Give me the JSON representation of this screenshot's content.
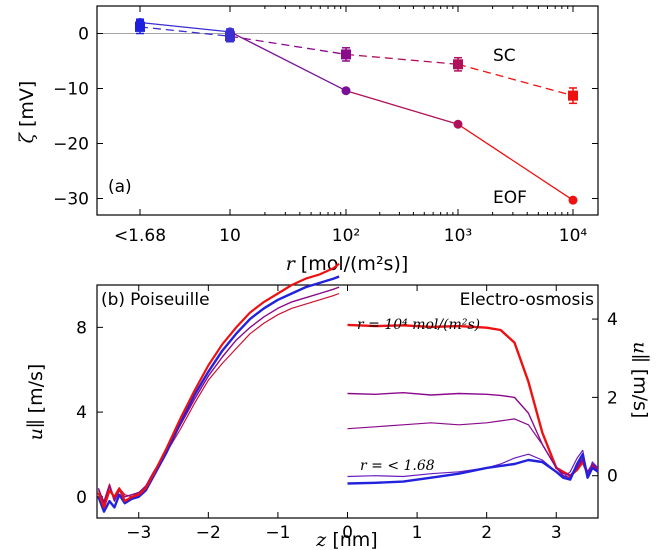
{
  "chart_data": [
    {
      "type": "line",
      "panel_label": "(a)",
      "xlabel_symbol": "r",
      "xlabel_units": "[mol/(m²s)]",
      "ylabel_symbol": "ζ",
      "ylabel_units": "[mV]",
      "x_tick_labels": [
        "<1.68",
        "10",
        "10²",
        "10³",
        "10⁴"
      ],
      "y_ticks": [
        0,
        -10,
        -20,
        -30
      ],
      "ylim": [
        -33,
        5
      ],
      "x_scale": "log",
      "x": [
        "<1.68",
        "10",
        "100",
        "1000",
        "10000"
      ],
      "series": [
        {
          "name": "SC",
          "style": "dashed",
          "marker": "square",
          "values": [
            1.2,
            -0.5,
            -3.8,
            -5.6,
            -11.3
          ],
          "error": [
            1.2,
            1.0,
            1.2,
            1.2,
            1.4
          ],
          "colors": [
            "#1f1fe0",
            "#3a2fd0",
            "#8b0a8b",
            "#b0105a",
            "#ee1111"
          ]
        },
        {
          "name": "EOF",
          "style": "solid",
          "marker": "circle",
          "values": [
            2.0,
            0.3,
            -10.4,
            -16.5,
            -30.3
          ],
          "error": [
            0.6,
            0.5,
            0,
            0,
            0
          ],
          "colors": [
            "#1f1fe0",
            "#3a2fd0",
            "#7a1098",
            "#b0105a",
            "#ee1111"
          ]
        }
      ]
    },
    {
      "type": "line",
      "panel_label": "(b)",
      "left_title": "Poiseuille",
      "right_title": "Electro-osmosis",
      "xlabel_symbol": "z",
      "xlabel_units": "[nm]",
      "ylabel_symbol": "u∥",
      "ylabel_units": "[m/s]",
      "x_ticks": [
        -3,
        -2,
        -1,
        0,
        1,
        2,
        3
      ],
      "xlim": [
        -3.6,
        3.6
      ],
      "left_y_ticks": [
        0,
        4,
        8
      ],
      "left_ylim": [
        -1,
        10
      ],
      "right_y_ticks": [
        0,
        2,
        4
      ],
      "right_ylim": [
        -1.08,
        4.87
      ],
      "annotation_top": "r = 10⁴ mol/(m²s)",
      "annotation_bottom": "r = < 1.68",
      "poiseuille_x": [
        -3.58,
        -3.5,
        -3.42,
        -3.35,
        -3.28,
        -3.2,
        -3.1,
        -3.0,
        -2.9,
        -2.8,
        -2.6,
        -2.4,
        -2.2,
        -2.0,
        -1.8,
        -1.6,
        -1.4,
        -1.2,
        -1.0,
        -0.8,
        -0.6,
        -0.4,
        -0.2,
        -0.12
      ],
      "poiseuille_series": [
        {
          "name": "",
          "color": "#ee1111",
          "width": 2.2,
          "values": [
            0.2,
            -0.5,
            0.3,
            0.0,
            0.4,
            -0.2,
            0.0,
            0.1,
            0.4,
            1.0,
            2.3,
            3.7,
            5.0,
            6.2,
            7.2,
            8.0,
            8.7,
            9.2,
            9.6,
            10.0,
            10.3,
            10.5,
            10.8,
            11.0
          ]
        },
        {
          "name": "",
          "color": "#2222dd",
          "width": 2.4,
          "values": [
            0.0,
            -0.7,
            -0.2,
            -0.5,
            0.1,
            -0.3,
            -0.1,
            0.0,
            0.3,
            0.9,
            2.1,
            3.5,
            4.8,
            5.9,
            6.9,
            7.7,
            8.4,
            8.9,
            9.3,
            9.6,
            9.9,
            10.1,
            10.3,
            10.4
          ]
        },
        {
          "name": "",
          "color": "#8b0a8b",
          "width": 1.4,
          "values": [
            0.4,
            -0.3,
            0.5,
            -0.2,
            0.3,
            0.0,
            0.1,
            0.2,
            0.5,
            1.1,
            2.2,
            3.4,
            4.6,
            5.7,
            6.6,
            7.4,
            8.0,
            8.5,
            8.9,
            9.2,
            9.4,
            9.6,
            9.8,
            9.9
          ]
        },
        {
          "name": "",
          "color": "#cc1133",
          "width": 1.2,
          "values": [
            0.3,
            -0.2,
            0.6,
            -0.1,
            0.4,
            0.1,
            0.0,
            0.2,
            0.5,
            1.0,
            2.1,
            3.2,
            4.4,
            5.5,
            6.3,
            7.0,
            7.7,
            8.2,
            8.6,
            8.9,
            9.1,
            9.3,
            9.5,
            9.6
          ]
        }
      ],
      "eo_x": [
        0.0,
        0.4,
        0.8,
        1.2,
        1.6,
        2.0,
        2.2,
        2.4,
        2.6,
        2.8,
        3.0,
        3.1,
        3.2,
        3.3,
        3.38,
        3.45,
        3.52,
        3.6
      ],
      "eo_series": [
        {
          "name": "",
          "color": "#ee1111",
          "width": 2.4,
          "values": [
            3.85,
            3.82,
            3.84,
            3.8,
            3.82,
            3.78,
            3.72,
            3.4,
            2.4,
            1.1,
            0.2,
            0.1,
            0.0,
            0.15,
            0.35,
            0.05,
            0.25,
            0.1
          ]
        },
        {
          "name": "",
          "color": "#8b0a8b",
          "width": 1.4,
          "values": [
            2.1,
            2.08,
            2.12,
            2.06,
            2.1,
            2.08,
            2.05,
            2.0,
            1.6,
            0.8,
            0.2,
            0.0,
            -0.05,
            0.2,
            0.4,
            0.1,
            0.3,
            0.15
          ]
        },
        {
          "name": "",
          "color": "#8b0a8b",
          "width": 1.2,
          "values": [
            1.2,
            1.25,
            1.3,
            1.35,
            1.3,
            1.35,
            1.4,
            1.45,
            1.3,
            0.8,
            0.2,
            0.05,
            0.0,
            0.25,
            0.45,
            0.05,
            0.3,
            0.2
          ]
        },
        {
          "name": "",
          "color": "#6a1cc0",
          "width": 1.2,
          "values": [
            -0.02,
            0.0,
            -0.02,
            0.05,
            0.1,
            0.2,
            0.3,
            0.45,
            0.55,
            0.4,
            0.1,
            -0.05,
            0.1,
            0.45,
            0.65,
            0.0,
            0.35,
            0.2
          ]
        },
        {
          "name": "",
          "color": "#2222dd",
          "width": 2.4,
          "values": [
            -0.2,
            -0.18,
            -0.15,
            -0.05,
            0.05,
            0.2,
            0.25,
            0.3,
            0.4,
            0.35,
            0.1,
            -0.05,
            -0.1,
            0.3,
            0.55,
            -0.05,
            0.2,
            0.1
          ]
        }
      ]
    }
  ]
}
